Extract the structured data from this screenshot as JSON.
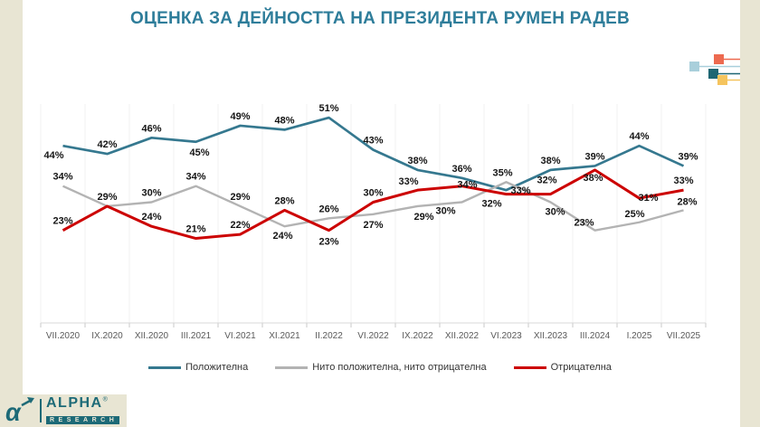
{
  "page": {
    "title": "ОЦЕНКА ЗА ДЕЙНОСТТА НА ПРЕЗИДЕНТА РУМЕН РАДЕВ"
  },
  "branding": {
    "logo_glyph": "α",
    "logo_text": "ALPHA",
    "registered_mark": "®",
    "logo_subtext": "RESEARCH"
  },
  "colors": {
    "title": "#2e7d9a",
    "accent_background": "#e8e5d3",
    "positive_line": "#35788f",
    "neutral_line": "#b3b3b3",
    "negative_line": "#cc0000",
    "deco_coral": "#ed6a50",
    "deco_lightblue": "#a9cfdb",
    "deco_teal": "#1e6673",
    "deco_orange": "#f5c45e",
    "logo_teal": "#1d6a77"
  },
  "chart_data": {
    "type": "line",
    "title": "ОЦЕНКА ЗА ДЕЙНОСТТА НА ПРЕЗИДЕНТА РУМЕН РАДЕВ",
    "categories": [
      "VII.2020",
      "IX.2020",
      "XII.2020",
      "III.2021",
      "VI.2021",
      "XI.2021",
      "II.2022",
      "VI.2022",
      "IX.2022",
      "XII.2022",
      "VI.2023",
      "XII.2023",
      "III.2024",
      "I.2025",
      "VII.2025"
    ],
    "series": [
      {
        "name": "Положителна",
        "color": "#35788f",
        "values": [
          44,
          42,
          46,
          45,
          49,
          48,
          51,
          43,
          38,
          36,
          33,
          38,
          39,
          44,
          39
        ]
      },
      {
        "name": "Нито положителна, нито отрицателна",
        "color": "#b3b3b3",
        "values": [
          34,
          29,
          30,
          34,
          29,
          24,
          26,
          27,
          29,
          30,
          35,
          30,
          23,
          25,
          28
        ],
        "hidden_labels": [
          1
        ]
      },
      {
        "name": "Отрицателна",
        "color": "#cc0000",
        "values": [
          23,
          29,
          24,
          21,
          22,
          28,
          23,
          30,
          33,
          34,
          32,
          32,
          38,
          31,
          33
        ]
      }
    ],
    "data_labels": "percent",
    "ylim": [
      0,
      60
    ],
    "xlabel": "",
    "ylabel": "",
    "grid": "faint-vertical",
    "legend_position": "bottom"
  }
}
